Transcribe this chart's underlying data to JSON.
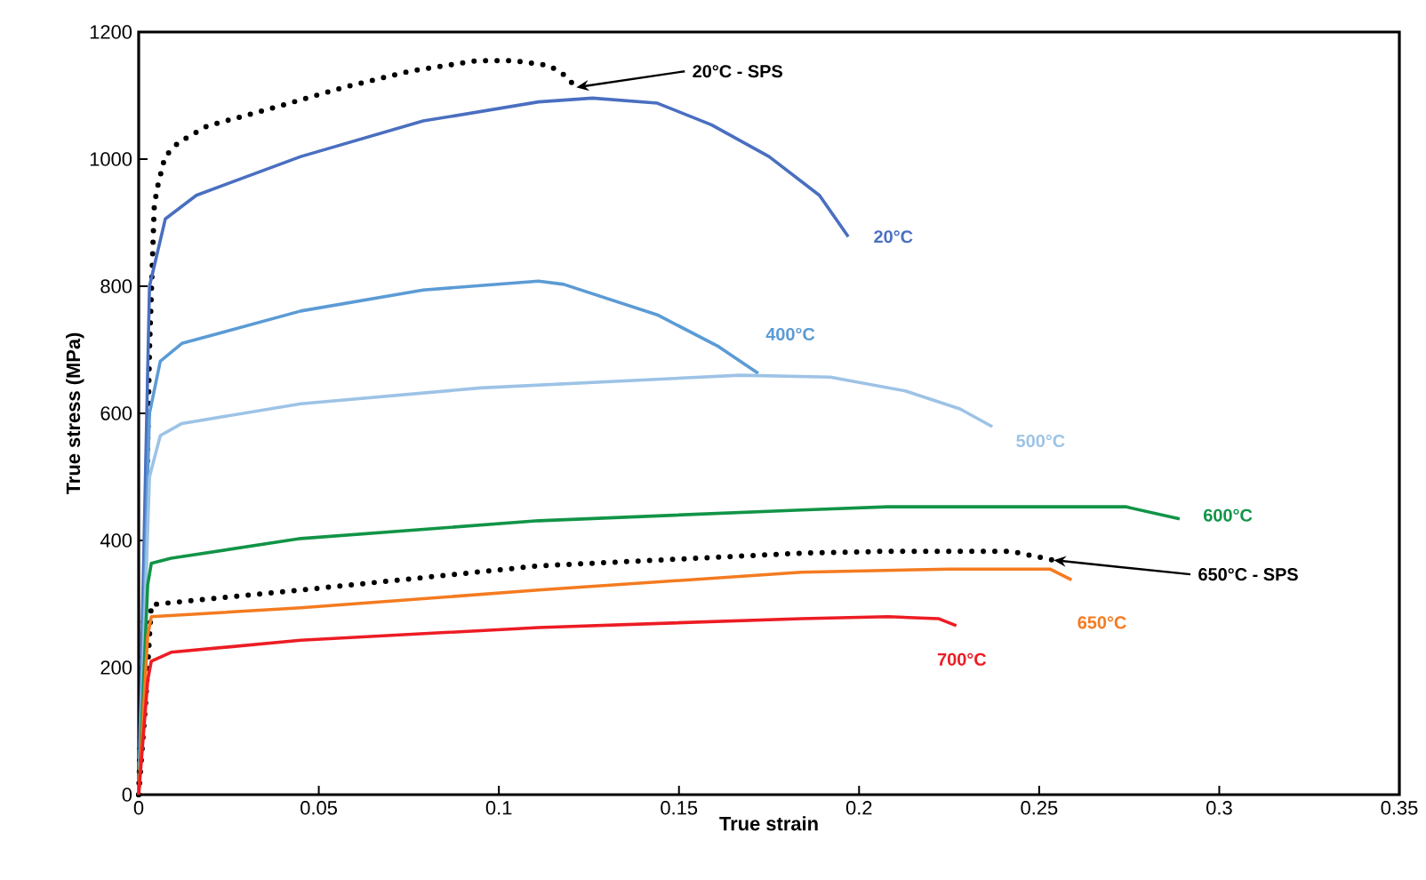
{
  "chart_data": {
    "type": "line",
    "xlabel": "True strain",
    "ylabel": "True stress (MPa)",
    "xlim": [
      0,
      0.35
    ],
    "ylim": [
      0,
      1200
    ],
    "xticks": [
      0,
      0.05,
      0.1,
      0.15,
      0.2,
      0.25,
      0.3,
      0.35
    ],
    "yticks": [
      0,
      200,
      400,
      600,
      800,
      1000,
      1200
    ],
    "grid": false,
    "legend": false,
    "marker": "none",
    "series": [
      {
        "color": "#000000",
        "line_style": "dotted",
        "x": [
          0,
          0.002,
          0.003,
          0.0043,
          0.005,
          0.0073,
          0.011,
          0.019,
          0.037,
          0.057,
          0.075,
          0.094,
          0.104,
          0.114,
          0.118,
          0.1215
        ],
        "values": [
          0,
          400,
          700,
          923,
          951,
          1004,
          1026,
          1052,
          1080,
          1113,
          1138,
          1155,
          1155,
          1147,
          1133,
          1113
        ]
      },
      {
        "name": "20°C",
        "color": "#4a6fc0",
        "line_style": "solid",
        "x": [
          0,
          0.003,
          0.0074,
          0.016,
          0.045,
          0.079,
          0.111,
          0.126,
          0.144,
          0.159,
          0.175,
          0.189,
          0.197
        ],
        "values": [
          0,
          800,
          906,
          943,
          1004,
          1060,
          1090,
          1096,
          1088,
          1054,
          1004,
          943,
          878
        ]
      },
      {
        "name": "400°C",
        "color": "#5b9bd5",
        "line_style": "solid",
        "x": [
          0,
          0.003,
          0.006,
          0.012,
          0.045,
          0.079,
          0.111,
          0.118,
          0.144,
          0.161,
          0.172
        ],
        "values": [
          0,
          600,
          682,
          710,
          761,
          794,
          808,
          803,
          755,
          705,
          663
        ]
      },
      {
        "name": "500°C",
        "color": "#9dc3e6",
        "line_style": "solid",
        "x": [
          0,
          0.003,
          0.006,
          0.012,
          0.045,
          0.095,
          0.167,
          0.192,
          0.213,
          0.228,
          0.237
        ],
        "values": [
          0,
          500,
          565,
          584,
          615,
          640,
          660,
          657,
          635,
          607,
          579
        ]
      },
      {
        "name": "600°C",
        "color": "#119447",
        "line_style": "solid",
        "x": [
          0,
          0.0025,
          0.0035,
          0.009,
          0.045,
          0.111,
          0.184,
          0.208,
          0.274,
          0.289
        ],
        "values": [
          0,
          330,
          364,
          372,
          403,
          431,
          448,
          453,
          453,
          434
        ]
      },
      {
        "color": "#000000",
        "line_style": "dotted",
        "x": [
          0,
          0.002,
          0.0035,
          0.045,
          0.111,
          0.184,
          0.208,
          0.242,
          0.254
        ],
        "values": [
          0,
          150,
          299,
          322,
          360,
          380,
          383,
          383,
          369
        ]
      },
      {
        "name": "650°C",
        "color": "#f47b20",
        "line_style": "solid",
        "x": [
          0,
          0.0025,
          0.0035,
          0.045,
          0.111,
          0.184,
          0.225,
          0.253,
          0.259
        ],
        "values": [
          0,
          250,
          280,
          294,
          322,
          350,
          355,
          355,
          338
        ]
      },
      {
        "name": "700°C",
        "color": "#ed1c24",
        "line_style": "solid",
        "x": [
          0,
          0.0025,
          0.0035,
          0.009,
          0.045,
          0.111,
          0.184,
          0.208,
          0.222,
          0.227
        ],
        "values": [
          0,
          180,
          210,
          224,
          243,
          263,
          277,
          280,
          277,
          266
        ]
      }
    ],
    "annotations": [
      {
        "text": "20°C - SPS",
        "x": 0.1215,
        "y": 1113
      },
      {
        "text": "650°C - SPS",
        "x": 0.254,
        "y": 369
      }
    ]
  }
}
